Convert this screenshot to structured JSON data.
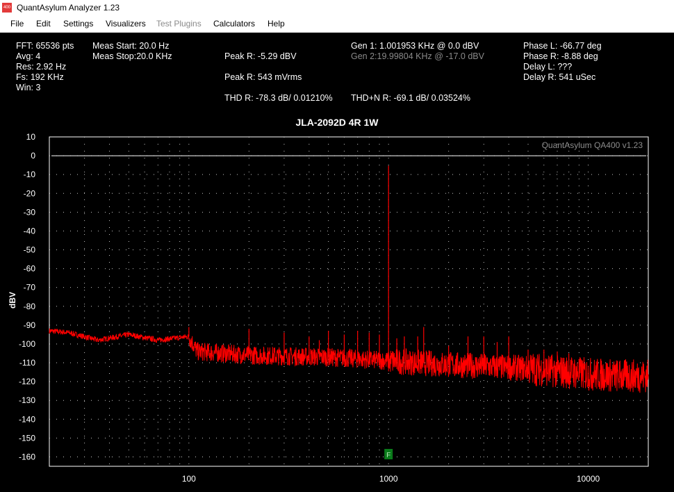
{
  "window": {
    "icon_text": "400",
    "title": "QuantAsylum Analyzer 1.23"
  },
  "menu": [
    {
      "label": "File",
      "enabled": true
    },
    {
      "label": "Edit",
      "enabled": true
    },
    {
      "label": "Settings",
      "enabled": true
    },
    {
      "label": "Visualizers",
      "enabled": true
    },
    {
      "label": "Test Plugins",
      "enabled": false
    },
    {
      "label": "Calculators",
      "enabled": true
    },
    {
      "label": "Help",
      "enabled": true
    }
  ],
  "info": {
    "fft": "FFT: 65536 pts",
    "avg": "Avg: 4",
    "res": "Res: 2.92 Hz",
    "fs": "Fs: 192 KHz",
    "win": "Win: 3",
    "meas_start": "Meas Start: 20.0 Hz",
    "meas_stop": "Meas Stop:20.0 KHz",
    "peak_r_dbv": "Peak R: -5.29 dBV",
    "peak_r_mvrms": "Peak R: 543 mVrms",
    "thd_r": "THD R: -78.3 dB/ 0.01210%",
    "thdn_r": "THD+N R: -69.1 dB/ 0.03524%",
    "gen1": "Gen 1: 1.001953 KHz @ 0.0  dBV",
    "gen2": "Gen 2:19.99804 KHz @ -17.0  dBV",
    "phase_l": "Phase L: -66.77 deg",
    "phase_r": "Phase R: -8.88 deg",
    "delay_l": "Delay L: ???",
    "delay_r": "Delay R: 541 uSec"
  },
  "chart_data": {
    "type": "line",
    "title": "JLA-2092D 4R  1W",
    "ylabel": "dBV",
    "xlabel": "",
    "x_scale": "log",
    "xlim": [
      20,
      20000
    ],
    "ylim": [
      -165,
      10
    ],
    "y_ticks": [
      10,
      0,
      -10,
      -20,
      -30,
      -40,
      -50,
      -60,
      -70,
      -80,
      -90,
      -100,
      -110,
      -120,
      -130,
      -140,
      -150,
      -160
    ],
    "x_tick_labels": [
      {
        "value": 100,
        "label": "100"
      },
      {
        "value": 1000,
        "label": "1000"
      },
      {
        "value": 10000,
        "label": "10000"
      }
    ],
    "watermark": "QuantAsylum QA400 v1.23",
    "reference_line_dbv": 0,
    "series_color": "#ff0000",
    "marker": {
      "label": "F",
      "x": 1000,
      "color": "#0a7a1a"
    },
    "grid": true,
    "series": [
      {
        "color": "#ff0000",
        "noise_floor": [
          [
            20,
            -93
          ],
          [
            25,
            -94
          ],
          [
            35,
            -98
          ],
          [
            50,
            -95
          ],
          [
            70,
            -98
          ],
          [
            100,
            -96
          ],
          [
            110,
            -104
          ],
          [
            200,
            -106
          ],
          [
            500,
            -107
          ],
          [
            1000,
            -109
          ],
          [
            2000,
            -111
          ],
          [
            5000,
            -113
          ],
          [
            10000,
            -116
          ],
          [
            15000,
            -117
          ],
          [
            20000,
            -117
          ]
        ],
        "peaks": [
          {
            "x": 1000,
            "y": -5.3
          },
          {
            "x": 100,
            "y": -91
          },
          {
            "x": 200,
            "y": -92
          },
          {
            "x": 300,
            "y": -94
          },
          {
            "x": 400,
            "y": -96
          },
          {
            "x": 450,
            "y": -98
          },
          {
            "x": 500,
            "y": -93
          },
          {
            "x": 600,
            "y": -95
          },
          {
            "x": 700,
            "y": -93
          },
          {
            "x": 800,
            "y": -94
          },
          {
            "x": 900,
            "y": -95
          },
          {
            "x": 1100,
            "y": -97
          },
          {
            "x": 1200,
            "y": -96
          },
          {
            "x": 1400,
            "y": -96
          },
          {
            "x": 1500,
            "y": -91
          },
          {
            "x": 2000,
            "y": -101
          },
          {
            "x": 2500,
            "y": -96
          },
          {
            "x": 3000,
            "y": -96
          },
          {
            "x": 3500,
            "y": -99
          },
          {
            "x": 4000,
            "y": -96
          },
          {
            "x": 5000,
            "y": -103
          },
          {
            "x": 6000,
            "y": -103
          },
          {
            "x": 7000,
            "y": -104
          },
          {
            "x": 8000,
            "y": -105
          },
          {
            "x": 9000,
            "y": -108
          }
        ]
      }
    ]
  }
}
